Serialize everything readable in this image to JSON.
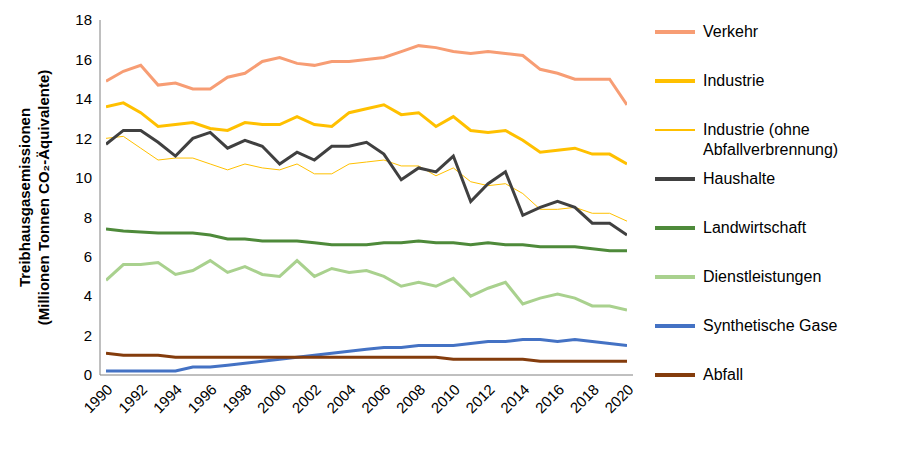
{
  "chart_data": {
    "type": "line",
    "y_label": [
      "Treibhausgasemissionen",
      "(Millionen Tonnen CO₂-Äquivalente)"
    ],
    "x": [
      1990,
      1991,
      1992,
      1993,
      1994,
      1995,
      1996,
      1997,
      1998,
      1999,
      2000,
      2001,
      2002,
      2003,
      2004,
      2005,
      2006,
      2007,
      2008,
      2009,
      2010,
      2011,
      2012,
      2013,
      2014,
      2015,
      2016,
      2017,
      2018,
      2019,
      2020
    ],
    "xlim": [
      1990,
      2020
    ],
    "xticks": [
      1990,
      1992,
      1994,
      1996,
      1998,
      2000,
      2002,
      2004,
      2006,
      2008,
      2010,
      2012,
      2014,
      2016,
      2018,
      2020
    ],
    "ylim": [
      0,
      18
    ],
    "yticks": [
      0,
      2,
      4,
      6,
      8,
      10,
      12,
      14,
      16,
      18
    ],
    "grid": false,
    "legend": "right",
    "marker": "none",
    "series": [
      {
        "name": "Verkehr",
        "color": "#F79D74",
        "line_style": "solid",
        "values": [
          14.9,
          15.4,
          15.7,
          14.7,
          14.8,
          14.5,
          14.5,
          15.1,
          15.3,
          15.9,
          16.1,
          15.8,
          15.7,
          15.9,
          15.9,
          16.0,
          16.1,
          16.4,
          16.7,
          16.6,
          16.4,
          16.3,
          16.4,
          16.3,
          16.2,
          15.5,
          15.3,
          15.0,
          15.0,
          15.0,
          13.7
        ]
      },
      {
        "name": "Industrie",
        "color": "#FFC000",
        "line_style": "solid",
        "values": [
          13.6,
          13.8,
          13.3,
          12.6,
          12.7,
          12.8,
          12.5,
          12.4,
          12.8,
          12.7,
          12.7,
          13.1,
          12.7,
          12.6,
          13.3,
          13.5,
          13.7,
          13.2,
          13.3,
          12.6,
          13.1,
          12.4,
          12.3,
          12.4,
          11.9,
          11.3,
          11.4,
          11.5,
          11.2,
          11.2,
          10.7
        ]
      },
      {
        "name": "Industrie (ohne Abfallverbrennung)",
        "color": "#FFC000",
        "line_style": "thin",
        "values": [
          12.0,
          12.1,
          11.5,
          10.9,
          11.0,
          11.0,
          10.7,
          10.4,
          10.7,
          10.5,
          10.4,
          10.7,
          10.2,
          10.2,
          10.7,
          10.8,
          10.9,
          10.6,
          10.6,
          10.1,
          10.5,
          9.8,
          9.6,
          9.7,
          9.2,
          8.4,
          8.4,
          8.5,
          8.2,
          8.2,
          7.8
        ]
      },
      {
        "name": "Haushalte",
        "color": "#404040",
        "line_style": "solid",
        "values": [
          11.7,
          12.4,
          12.4,
          11.8,
          11.1,
          12.0,
          12.3,
          11.5,
          11.9,
          11.6,
          10.7,
          11.3,
          10.9,
          11.6,
          11.6,
          11.8,
          11.2,
          9.9,
          10.5,
          10.3,
          11.1,
          8.8,
          9.7,
          10.3,
          8.1,
          8.5,
          8.8,
          8.5,
          7.7,
          7.7,
          7.1
        ]
      },
      {
        "name": "Landwirtschaft",
        "color": "#4E8A3A",
        "line_style": "solid",
        "values": [
          7.4,
          7.3,
          7.25,
          7.2,
          7.2,
          7.2,
          7.1,
          6.9,
          6.9,
          6.8,
          6.8,
          6.8,
          6.7,
          6.6,
          6.6,
          6.6,
          6.7,
          6.7,
          6.8,
          6.7,
          6.7,
          6.6,
          6.7,
          6.6,
          6.6,
          6.5,
          6.5,
          6.5,
          6.4,
          6.3,
          6.3
        ]
      },
      {
        "name": "Dienstleistungen",
        "color": "#A9D18E",
        "line_style": "solid",
        "values": [
          4.8,
          5.6,
          5.6,
          5.7,
          5.1,
          5.3,
          5.8,
          5.2,
          5.5,
          5.1,
          5.0,
          5.8,
          5.0,
          5.4,
          5.2,
          5.3,
          5.0,
          4.5,
          4.7,
          4.5,
          4.9,
          4.0,
          4.4,
          4.7,
          3.6,
          3.9,
          4.1,
          3.9,
          3.5,
          3.5,
          3.3
        ]
      },
      {
        "name": "Synthetische Gase",
        "color": "#4472C4",
        "line_style": "solid",
        "values": [
          0.2,
          0.2,
          0.2,
          0.2,
          0.2,
          0.4,
          0.4,
          0.5,
          0.6,
          0.7,
          0.8,
          0.9,
          1.0,
          1.1,
          1.2,
          1.3,
          1.4,
          1.4,
          1.5,
          1.5,
          1.5,
          1.6,
          1.7,
          1.7,
          1.8,
          1.8,
          1.7,
          1.8,
          1.7,
          1.6,
          1.5
        ]
      },
      {
        "name": "Abfall",
        "color": "#843C0C",
        "line_style": "solid",
        "values": [
          1.1,
          1.0,
          1.0,
          1.0,
          0.9,
          0.9,
          0.9,
          0.9,
          0.9,
          0.9,
          0.9,
          0.9,
          0.9,
          0.9,
          0.9,
          0.9,
          0.9,
          0.9,
          0.9,
          0.9,
          0.8,
          0.8,
          0.8,
          0.8,
          0.8,
          0.7,
          0.7,
          0.7,
          0.7,
          0.7,
          0.7
        ]
      }
    ]
  }
}
